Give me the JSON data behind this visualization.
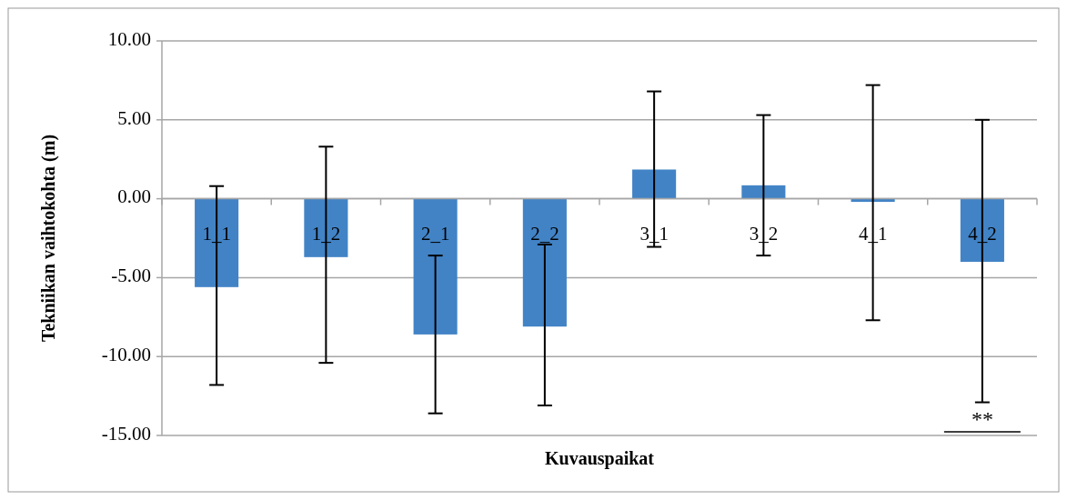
{
  "chart_data": {
    "type": "bar",
    "xlabel": "Kuvauspaikat",
    "ylabel": "Tekniikan vaihtokohta (m)",
    "categories": [
      "1_1",
      "1_2",
      "2_1",
      "2_2",
      "3_1",
      "3_2",
      "4_1",
      "4_2"
    ],
    "values": [
      -5.6,
      -3.7,
      -8.6,
      -8.1,
      1.85,
      0.85,
      -0.2,
      -4.0
    ],
    "errors": [
      [
        -11.8,
        0.8
      ],
      [
        -10.4,
        3.3
      ],
      [
        -13.6,
        -3.6
      ],
      [
        -13.1,
        -2.9
      ],
      [
        -3.05,
        6.8
      ],
      [
        -3.6,
        5.3
      ],
      [
        -7.7,
        7.2
      ],
      [
        -12.9,
        5.0
      ]
    ],
    "color": "#4283c6",
    "ylim": [
      -15,
      10
    ],
    "yticks": [
      {
        "value": -15,
        "label": "-15.00"
      },
      {
        "value": -10,
        "label": "-10.00"
      },
      {
        "value": -5,
        "label": "-5.00"
      },
      {
        "value": 0,
        "label": "0.00"
      },
      {
        "value": 5,
        "label": "5.00"
      },
      {
        "value": 10,
        "label": "10.00"
      }
    ],
    "grid": "y",
    "annotations": [
      "**"
    ]
  }
}
